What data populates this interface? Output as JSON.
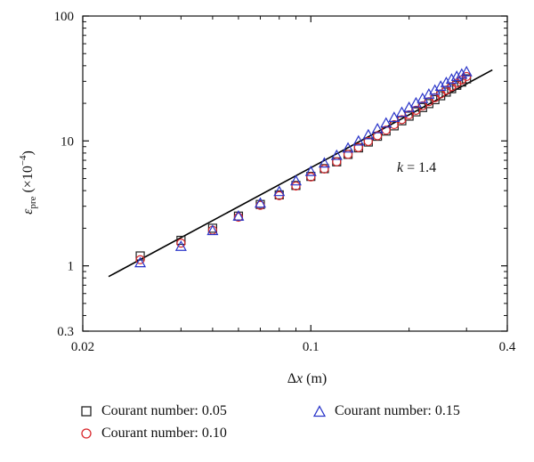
{
  "chart_data": {
    "type": "scatter",
    "xscale": "log",
    "yscale": "log",
    "xlim": [
      0.02,
      0.4
    ],
    "ylim": [
      0.3,
      100
    ],
    "xticks": [
      0.02,
      0.1,
      0.4
    ],
    "xtick_labels": [
      "0.02",
      "0.1",
      "0.4"
    ],
    "yticks": [
      0.3,
      1,
      10,
      100
    ],
    "ytick_labels": [
      "0.3",
      "1",
      "10",
      "100"
    ],
    "xlabel_main": "Δ",
    "xlabel_var": "x",
    "xlabel_unit": " (m)",
    "ylabel_main": "ε",
    "ylabel_sub": "pre",
    "ylabel_open": " (×10",
    "ylabel_sup": "−4",
    "ylabel_close": ")",
    "annotation_var": "k",
    "annotation_rest": " = 1.4",
    "grid": false,
    "legend_position": "bottom",
    "fit_line": {
      "x": [
        0.024,
        0.36
      ],
      "y": [
        0.82,
        37
      ]
    },
    "series": [
      {
        "name": "Courant number: 0.05",
        "marker": "square",
        "color": "#222222",
        "x": [
          0.03,
          0.04,
          0.05,
          0.06,
          0.07,
          0.08,
          0.09,
          0.1,
          0.11,
          0.12,
          0.13,
          0.14,
          0.15,
          0.16,
          0.17,
          0.18,
          0.19,
          0.2,
          0.21,
          0.22,
          0.23,
          0.24,
          0.25,
          0.26,
          0.27,
          0.28,
          0.29,
          0.3
        ],
        "y": [
          1.2,
          1.6,
          2.0,
          2.5,
          3.1,
          3.7,
          4.4,
          5.2,
          6.0,
          6.8,
          7.8,
          8.8,
          9.8,
          10.9,
          12.0,
          13.2,
          14.5,
          15.8,
          17.1,
          18.5,
          19.9,
          21.4,
          23.0,
          24.6,
          26.2,
          27.9,
          29.6,
          31.4
        ]
      },
      {
        "name": "Courant number: 0.10",
        "marker": "circle",
        "color": "#d9262b",
        "x": [
          0.03,
          0.04,
          0.05,
          0.06,
          0.07,
          0.08,
          0.09,
          0.1,
          0.11,
          0.12,
          0.13,
          0.14,
          0.15,
          0.16,
          0.17,
          0.18,
          0.19,
          0.2,
          0.21,
          0.22,
          0.23,
          0.24,
          0.25,
          0.26,
          0.27,
          0.28,
          0.29,
          0.3
        ],
        "y": [
          1.12,
          1.52,
          1.93,
          2.45,
          3.05,
          3.65,
          4.35,
          5.15,
          5.95,
          6.8,
          7.8,
          8.85,
          9.9,
          11.0,
          12.2,
          13.5,
          14.8,
          16.2,
          17.6,
          19.1,
          20.6,
          22.2,
          23.8,
          25.5,
          27.2,
          29.0,
          30.8,
          32.8
        ]
      },
      {
        "name": "Courant number: 0.15",
        "marker": "triangle",
        "color": "#2a35c9",
        "x": [
          0.03,
          0.04,
          0.05,
          0.06,
          0.07,
          0.08,
          0.09,
          0.1,
          0.11,
          0.12,
          0.13,
          0.14,
          0.15,
          0.16,
          0.17,
          0.18,
          0.19,
          0.2,
          0.21,
          0.22,
          0.23,
          0.24,
          0.25,
          0.26,
          0.27,
          0.28,
          0.29,
          0.3
        ],
        "y": [
          1.05,
          1.42,
          1.9,
          2.48,
          3.15,
          3.9,
          4.75,
          5.65,
          6.6,
          7.6,
          8.7,
          9.9,
          11.1,
          12.4,
          13.8,
          15.3,
          16.8,
          18.4,
          20.0,
          21.7,
          23.5,
          25.3,
          27.2,
          29.1,
          31.0,
          32.6,
          34.0,
          35.5
        ]
      }
    ]
  }
}
